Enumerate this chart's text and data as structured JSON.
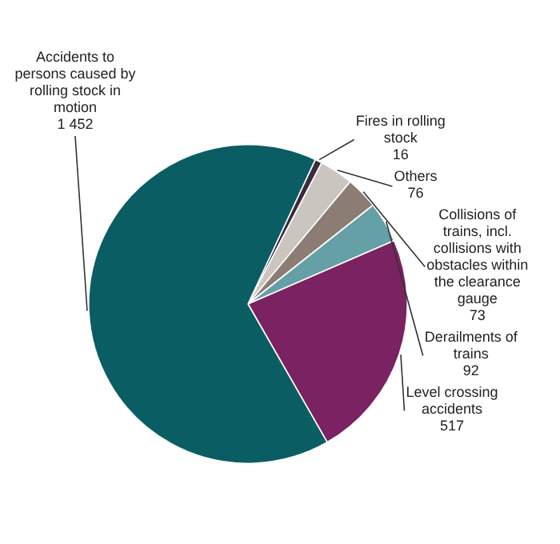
{
  "chart_data": {
    "type": "pie",
    "categories": [
      "Fires in rolling stock",
      "Others",
      "Collisions of trains, incl. collisions with obstacles within the clearance gauge",
      "Derailments of trains",
      "Level crossing accidents",
      "Accidents to persons caused by rolling stock in motion"
    ],
    "values": [
      16,
      76,
      73,
      92,
      517,
      1452
    ],
    "value_labels": [
      "16",
      "76",
      "73",
      "92",
      "517",
      "1 452"
    ],
    "colors": [
      "#3b2b3b",
      "#cbc5bf",
      "#8b7d74",
      "#64a0a5",
      "#7a2262",
      "#0b5d64"
    ],
    "legend": false
  }
}
